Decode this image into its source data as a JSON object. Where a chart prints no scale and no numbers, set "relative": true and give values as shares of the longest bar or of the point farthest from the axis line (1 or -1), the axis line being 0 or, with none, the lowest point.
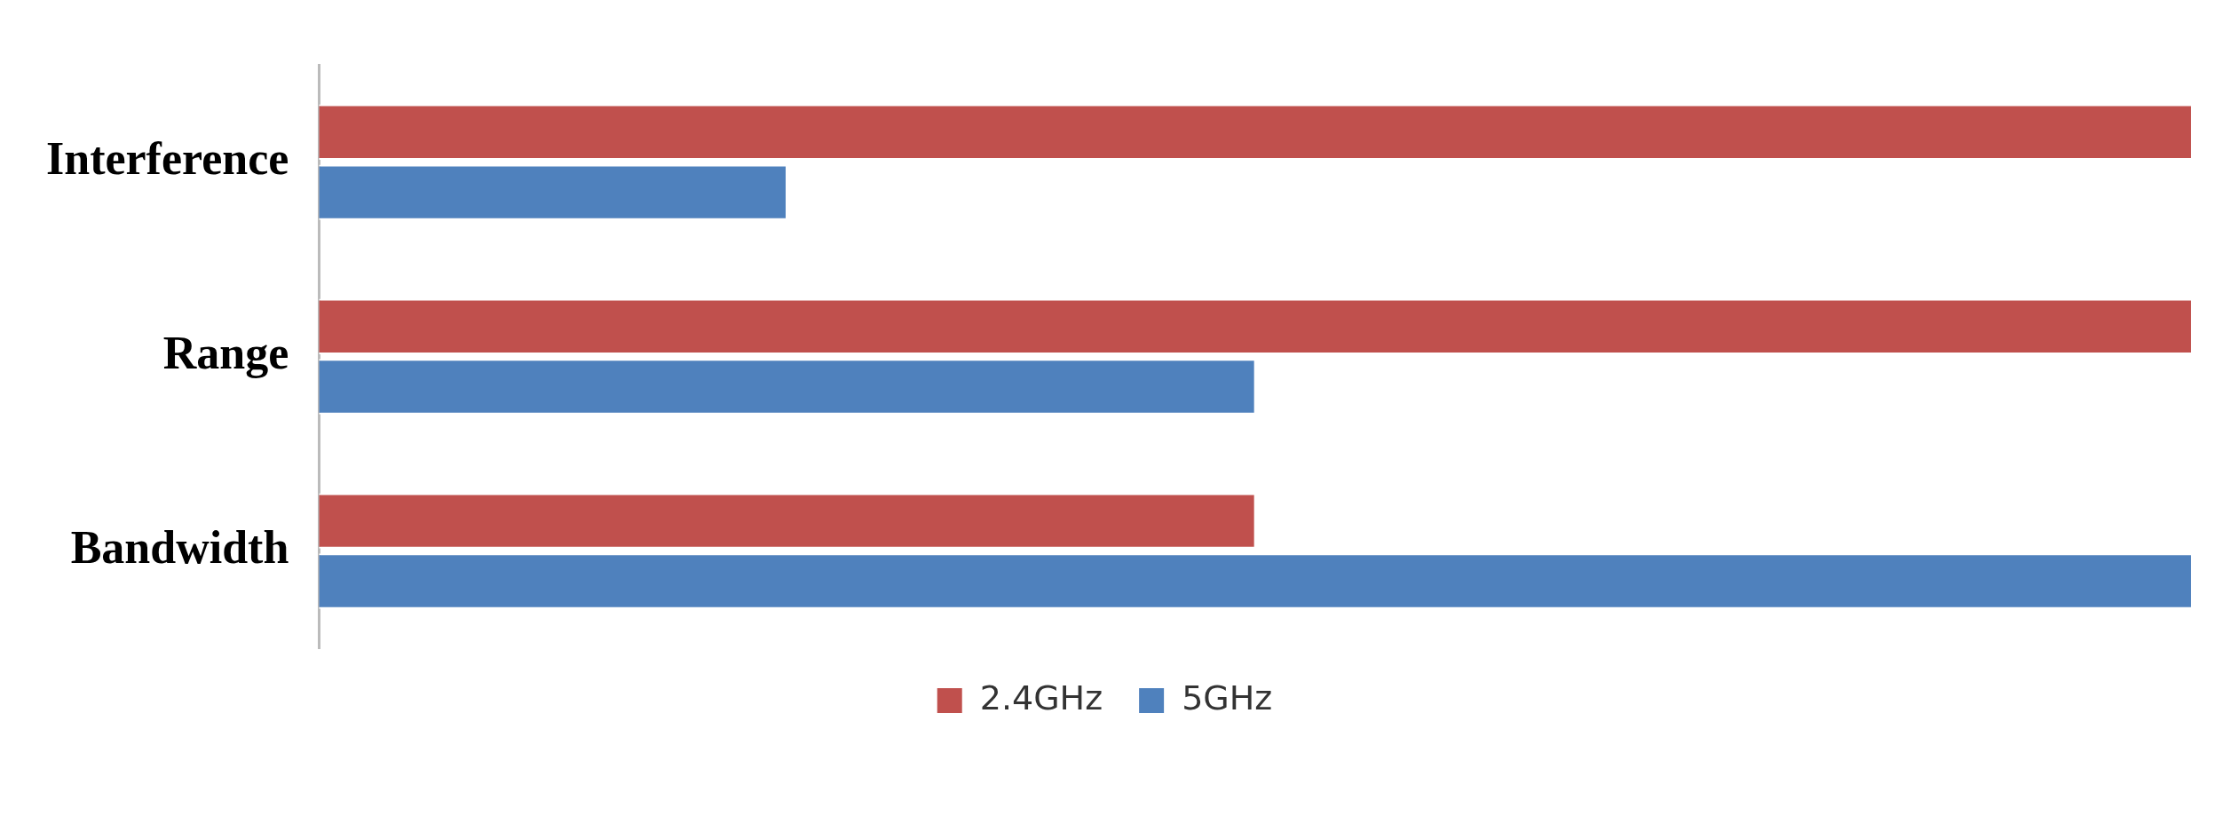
{
  "chart_data": {
    "type": "bar",
    "orientation": "horizontal",
    "relative": true,
    "categories": [
      "Interference",
      "Range",
      "Bandwidth"
    ],
    "series": [
      {
        "name": "2.4GHz",
        "color": "#c0504d",
        "values": [
          1,
          1,
          0.5
        ]
      },
      {
        "name": "5GHz",
        "color": "#4f81bd",
        "values": [
          0.25,
          0.5,
          1
        ]
      }
    ],
    "legend": "bottom"
  }
}
